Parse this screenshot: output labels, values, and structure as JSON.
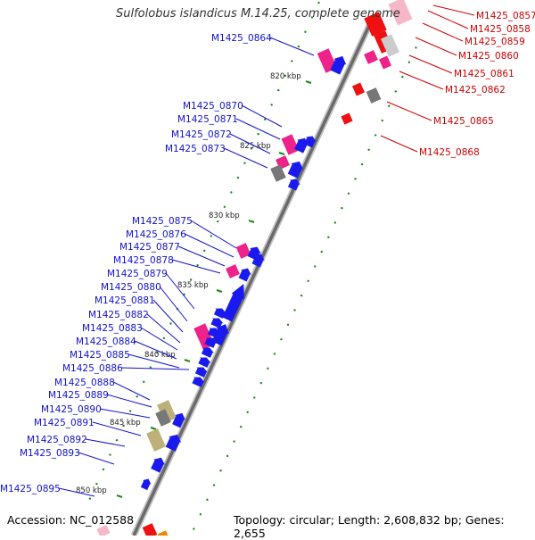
{
  "title": "Sulfolobus islandicus M.14.25, complete genome",
  "accession": "Accession: NC_012588",
  "topology": "Topology: circular; Length: 2,608,832 bp; Genes: 2,655",
  "kbp_ticks": [
    {
      "label": "820 kbp"
    },
    {
      "label": "825 kbp"
    },
    {
      "label": "830 kbp"
    },
    {
      "label": "835 kbp"
    },
    {
      "label": "840 kbp"
    },
    {
      "label": "845 kbp"
    },
    {
      "label": "850 kbp"
    }
  ],
  "right_labels": [
    "M1425_0857",
    "M1425_0858",
    "M1425_0859",
    "M1425_0860",
    "M1425_0861",
    "M1425_0862",
    "M1425_0865",
    "M1425_0868"
  ],
  "left_labels": [
    "M1425_0864",
    "M1425_0870",
    "M1425_0871",
    "M1425_0872",
    "M1425_0873",
    "M1425_0875",
    "M1425_0876",
    "M1425_0877",
    "M1425_0878",
    "M1425_0879",
    "M1425_0880",
    "M1425_0881",
    "M1425_0882",
    "M1425_0883",
    "M1425_0884",
    "M1425_0885",
    "M1425_0886",
    "M1425_0888",
    "M1425_0889",
    "M1425_0890",
    "M1425_0891",
    "M1425_0892",
    "M1425_0893",
    "M1425_0895"
  ],
  "colors": {
    "reverse_label": "#cc0000",
    "forward_label": "#1111cc",
    "cds_forward": "#1a1aee",
    "cds_reverse": "#ee1111",
    "rna": "#ee2288",
    "other": "#777777",
    "pseudo": "#bdb07a",
    "tick": "#1a8a1a"
  }
}
